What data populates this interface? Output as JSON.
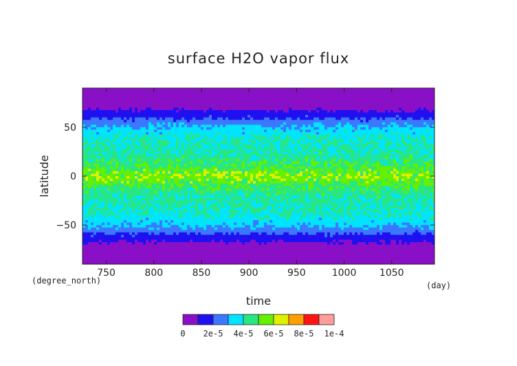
{
  "chart_data": {
    "type": "heatmap",
    "title": "surface H2O vapor flux",
    "xlabel": "time",
    "ylabel": "latitude",
    "x_unit": "(day)",
    "y_unit": "(degree_north)",
    "xlim": [
      725,
      1095
    ],
    "ylim": [
      -90,
      90
    ],
    "x_ticks": [
      750,
      800,
      850,
      900,
      950,
      1000,
      1050
    ],
    "y_ticks": [
      50,
      0,
      -50
    ],
    "x_tick_labels": [
      "750",
      "800",
      "850",
      "900",
      "950",
      "1000",
      "1050"
    ],
    "y_tick_labels": [
      "50",
      "0",
      "−50"
    ],
    "latitude_profile": {
      "latitude": [
        -90,
        -80,
        -70,
        -65,
        -62,
        -58,
        -55,
        -50,
        -40,
        -30,
        -20,
        -10,
        -5,
        0,
        5,
        10,
        20,
        30,
        40,
        50,
        55,
        58,
        62,
        65,
        70,
        80,
        90
      ],
      "flux": [
        2e-06,
        4e-06,
        8e-06,
        1.2e-05,
        1.6e-05,
        2.1e-05,
        2.6e-05,
        3.2e-05,
        3.8e-05,
        4.1e-05,
        4.3e-05,
        4.8e-05,
        5.4e-05,
        5.8e-05,
        5.4e-05,
        4.8e-05,
        4.3e-05,
        4.1e-05,
        3.8e-05,
        3.2e-05,
        2.6e-05,
        2.1e-05,
        1.6e-05,
        1.2e-05,
        8e-06,
        4e-06,
        2e-06
      ]
    },
    "colorbar": {
      "levels": [
        0,
        1e-05,
        2e-05,
        3e-05,
        4e-05,
        5e-05,
        6e-05,
        7e-05,
        8e-05,
        9e-05,
        0.0001
      ],
      "colors": [
        "#8a10c8",
        "#1e10f0",
        "#3c78ff",
        "#00e4ff",
        "#28e682",
        "#64f000",
        "#e0f000",
        "#ffa000",
        "#ff1414",
        "#ff9c9c"
      ],
      "tick_labels": [
        "0",
        "2e-5",
        "4e-5",
        "6e-5",
        "8e-5",
        "1e-4"
      ]
    }
  }
}
